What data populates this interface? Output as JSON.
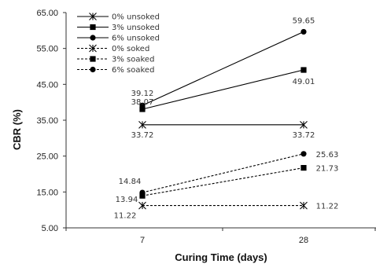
{
  "chart_data": {
    "type": "line",
    "xlabel": "Curing Time (days)",
    "ylabel": "CBR (%)",
    "x": [
      "7",
      "28"
    ],
    "y_ticks": [
      "5.00",
      "15.00",
      "25.00",
      "35.00",
      "45.00",
      "55.00",
      "65.00"
    ],
    "ylim": [
      5,
      65
    ],
    "grid": false,
    "legend_position": "top-left",
    "series": [
      {
        "name": "0% unsoked",
        "values": [
          33.72,
          33.72
        ],
        "labels": [
          "33.72",
          "33.72"
        ],
        "dash": false,
        "marker": "star"
      },
      {
        "name": "3% unsoked",
        "values": [
          38.07,
          49.01
        ],
        "labels": [
          "38.07",
          "49.01"
        ],
        "dash": false,
        "marker": "square"
      },
      {
        "name": "6% unsoked",
        "values": [
          39.12,
          59.65
        ],
        "labels": [
          "39.12",
          "59.65"
        ],
        "dash": false,
        "marker": "circle"
      },
      {
        "name": "0% soked",
        "values": [
          11.22,
          11.22
        ],
        "labels": [
          "11.22",
          "11.22"
        ],
        "dash": true,
        "marker": "star"
      },
      {
        "name": "3% soaked",
        "values": [
          13.94,
          21.73
        ],
        "labels": [
          "13.94",
          "21.73"
        ],
        "dash": true,
        "marker": "square"
      },
      {
        "name": "6% soaked",
        "values": [
          14.84,
          25.63
        ],
        "labels": [
          "14.84",
          "25.63"
        ],
        "dash": true,
        "marker": "circle"
      }
    ]
  }
}
